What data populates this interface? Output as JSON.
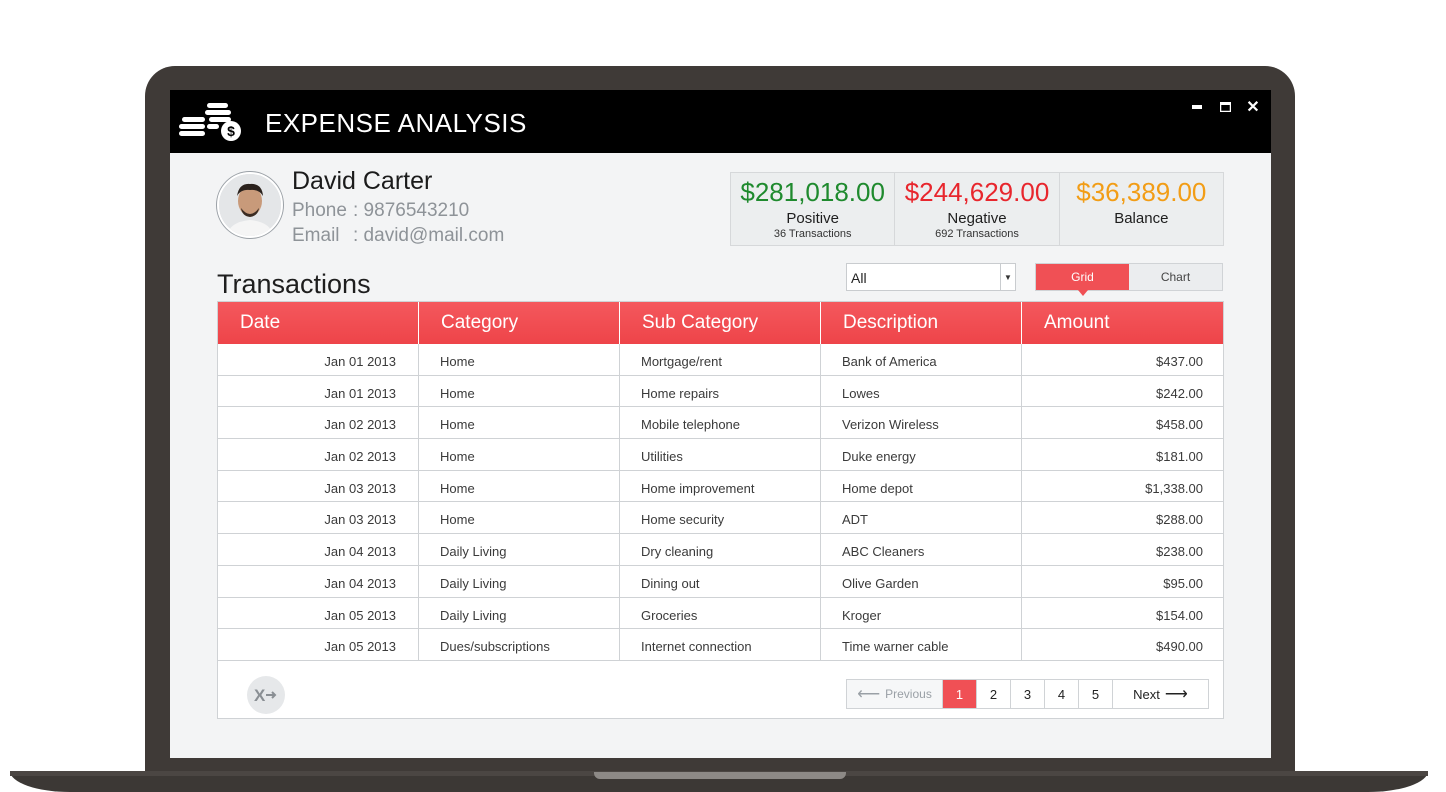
{
  "app": {
    "title": "EXPENSE ANALYSIS"
  },
  "window_controls": {
    "minimize": "minimize",
    "maximize": "maximize",
    "close": "✕"
  },
  "user": {
    "name": "David Carter",
    "phone_label": "Phone",
    "phone": ": 9876543210",
    "email_label": "Email",
    "email": ": david@mail.com"
  },
  "stats": [
    {
      "amount": "$281,018.00",
      "label": "Positive",
      "sub": "36 Transactions",
      "color": "#1f8a2e"
    },
    {
      "amount": "$244,629.00",
      "label": "Negative",
      "sub": "692 Transactions",
      "color": "#e8262d"
    },
    {
      "amount": "$36,389.00",
      "label": "Balance",
      "sub": "",
      "color": "#f29d16"
    }
  ],
  "section_title": "Transactions",
  "filter": {
    "value": "All"
  },
  "view_toggle": {
    "grid": "Grid",
    "chart": "Chart",
    "selected": "Grid"
  },
  "table": {
    "columns": [
      "Date",
      "Category",
      "Sub Category",
      "Description",
      "Amount"
    ],
    "rows": [
      [
        "Jan 01 2013",
        "Home",
        "Mortgage/rent",
        "Bank of America",
        "$437.00"
      ],
      [
        "Jan 01 2013",
        "Home",
        "Home repairs",
        "Lowes",
        "$242.00"
      ],
      [
        "Jan 02 2013",
        "Home",
        "Mobile telephone",
        "Verizon Wireless",
        "$458.00"
      ],
      [
        "Jan 02 2013",
        "Home",
        "Utilities",
        "Duke energy",
        "$181.00"
      ],
      [
        "Jan 03 2013",
        "Home",
        "Home improvement",
        "Home depot",
        "$1,338.00"
      ],
      [
        "Jan 03 2013",
        "Home",
        "Home security",
        "ADT",
        "$288.00"
      ],
      [
        "Jan 04 2013",
        "Daily Living",
        "Dry cleaning",
        "ABC Cleaners",
        "$238.00"
      ],
      [
        "Jan 04 2013",
        "Daily Living",
        "Dining out",
        "Olive Garden",
        "$95.00"
      ],
      [
        "Jan 05 2013",
        "Daily Living",
        "Groceries",
        "Kroger",
        "$154.00"
      ],
      [
        "Jan 05 2013",
        "Dues/subscriptions",
        "Internet connection",
        "Time warner cable",
        "$490.00"
      ]
    ]
  },
  "pager": {
    "previous": "Previous",
    "pages": [
      "1",
      "2",
      "3",
      "4",
      "5"
    ],
    "current": "1",
    "next": "Next"
  },
  "accent_color": "#f05055"
}
